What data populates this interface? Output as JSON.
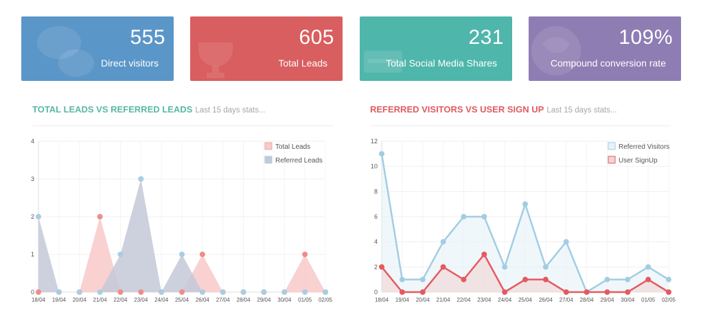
{
  "stats": [
    {
      "value": "555",
      "label": "Direct visitors",
      "color": "#5b96c8",
      "icon": "chat-bubbles-icon"
    },
    {
      "value": "605",
      "label": "Total Leads",
      "color": "#d95e5f",
      "icon": "trophy-icon"
    },
    {
      "value": "231",
      "label": "Total Social Media Shares",
      "color": "#4fb6ab",
      "icon": "share-icon"
    },
    {
      "value": "109%",
      "label": "Compound conversion rate",
      "color": "#8e7db3",
      "icon": "globe-icon"
    }
  ],
  "sections": [
    {
      "title": "TOTAL LEADS VS REFERRED LEADS",
      "subtitle": "Last 15 days stats...",
      "color": "#5bb8a6"
    },
    {
      "title": "REFERRED VISITORS VS USER SIGN UP",
      "subtitle": "Last 15 days stats...",
      "color": "#de5c61"
    }
  ],
  "chart_data": [
    {
      "type": "area",
      "categories": [
        "18/04",
        "19/04",
        "20/04",
        "21/04",
        "22/04",
        "23/04",
        "24/04",
        "25/04",
        "26/04",
        "27/04",
        "28/04",
        "29/04",
        "30/04",
        "01/05",
        "02/05"
      ],
      "ylim": [
        0,
        4
      ],
      "yticks": [
        0,
        1,
        2,
        3,
        4
      ],
      "grid": true,
      "legend_position": "top-right",
      "series": [
        {
          "name": "Total Leads",
          "values": [
            0,
            0,
            0,
            2,
            0,
            0,
            0,
            0,
            1,
            0,
            0,
            0,
            0,
            1,
            0
          ],
          "color": "#f4a3a3",
          "fill": "#f8c9c9",
          "point_color": "#f08c8c",
          "line": false
        },
        {
          "name": "Referred Leads",
          "values": [
            2,
            0,
            0,
            0,
            1,
            3,
            0,
            1,
            0,
            0,
            0,
            0,
            0,
            0,
            0
          ],
          "color": "#a9cde3",
          "fill": "#c4c9d8",
          "point_color": "#a9cde3",
          "line": false
        }
      ]
    },
    {
      "type": "line",
      "categories": [
        "18/04",
        "19/04",
        "20/04",
        "21/04",
        "22/04",
        "23/04",
        "24/04",
        "25/04",
        "26/04",
        "27/04",
        "28/04",
        "29/04",
        "30/04",
        "01/05",
        "02/05"
      ],
      "ylim": [
        0,
        12
      ],
      "yticks": [
        0,
        2,
        4,
        6,
        8,
        10,
        12
      ],
      "grid": true,
      "legend_position": "top-right",
      "series": [
        {
          "name": "Referred Visitors",
          "values": [
            11,
            1,
            1,
            4,
            6,
            6,
            2,
            7,
            2,
            4,
            0,
            1,
            1,
            2,
            1
          ],
          "color": "#a2cde2",
          "fill": "#e6f2f8",
          "point_color": "#a2cde2",
          "line": true
        },
        {
          "name": "User SignUp",
          "values": [
            2,
            0,
            0,
            2,
            1,
            3,
            0,
            1,
            1,
            0,
            0,
            0,
            0,
            1,
            0
          ],
          "color": "#e45a60",
          "fill": "#f2d3d6",
          "point_color": "#e45a60",
          "line": true
        }
      ]
    }
  ]
}
